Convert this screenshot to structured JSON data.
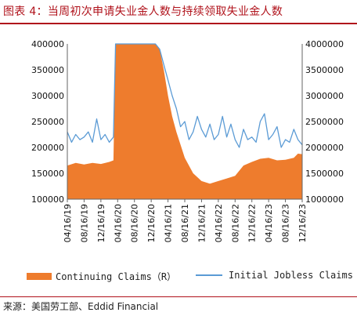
{
  "figure": {
    "title": "图表 4：当周初次申请失业金人数与持续领取失业金人数",
    "source": "来源：美国劳工部、Eddid Financial"
  },
  "chart_data": {
    "type": "line",
    "left_axis": {
      "min": 100000,
      "max": 400000,
      "ticks": [
        "400000",
        "350000",
        "300000",
        "250000",
        "200000",
        "150000",
        "100000"
      ]
    },
    "right_axis": {
      "min": 1000000,
      "max": 4000000,
      "ticks": [
        "4000000",
        "3500000",
        "3000000",
        "2500000",
        "2000000",
        "1500000",
        "1000000"
      ]
    },
    "x_ticks": [
      "04/16/19",
      "08/16/19",
      "12/16/19",
      "04/16/20",
      "08/16/20",
      "12/16/20",
      "04/16/21",
      "08/16/21",
      "12/16/21",
      "04/16/22",
      "08/16/22",
      "12/16/22",
      "04/16/23",
      "08/16/23",
      "12/16/23"
    ],
    "x_range": [
      0,
      56
    ],
    "legend_position": "bottom",
    "series": [
      {
        "name": "Continuing Claims（R）",
        "axis": "right",
        "style": "area",
        "color": "#ee7c2d",
        "x": [
          0,
          2,
          4,
          6,
          8,
          10,
          11,
          11.5,
          12,
          14,
          16,
          18,
          20,
          21,
          22,
          23,
          24,
          25,
          26,
          28,
          30,
          32,
          34,
          36,
          38,
          40,
          42,
          44,
          46,
          48,
          50,
          52,
          54,
          55,
          56
        ],
        "y": [
          1650000,
          1700000,
          1670000,
          1700000,
          1680000,
          1720000,
          1750000,
          4000000,
          4000000,
          4000000,
          4000000,
          4000000,
          4000000,
          4000000,
          3900000,
          3500000,
          3000000,
          2600000,
          2300000,
          1800000,
          1500000,
          1350000,
          1300000,
          1350000,
          1400000,
          1450000,
          1650000,
          1720000,
          1780000,
          1800000,
          1750000,
          1760000,
          1800000,
          1880000,
          1870000
        ]
      },
      {
        "name": "Initial Jobless Claims",
        "axis": "left",
        "style": "line",
        "color": "#5b9bd5",
        "x": [
          0,
          1,
          2,
          3,
          4,
          5,
          6,
          7,
          8,
          9,
          10,
          11,
          11.5,
          12,
          14,
          16,
          18,
          20,
          21,
          22,
          23,
          24,
          25,
          26,
          27,
          28,
          29,
          30,
          31,
          32,
          33,
          34,
          35,
          36,
          37,
          38,
          39,
          40,
          41,
          42,
          43,
          44,
          45,
          46,
          47,
          48,
          49,
          50,
          51,
          52,
          53,
          54,
          55,
          56
        ],
        "y": [
          230000,
          210000,
          225000,
          215000,
          220000,
          230000,
          210000,
          255000,
          215000,
          225000,
          210000,
          220000,
          400000,
          400000,
          400000,
          400000,
          400000,
          400000,
          400000,
          390000,
          360000,
          330000,
          300000,
          275000,
          240000,
          250000,
          215000,
          230000,
          260000,
          235000,
          220000,
          245000,
          215000,
          225000,
          260000,
          220000,
          245000,
          215000,
          200000,
          235000,
          215000,
          220000,
          210000,
          250000,
          265000,
          215000,
          225000,
          240000,
          200000,
          215000,
          210000,
          235000,
          215000,
          205000
        ]
      }
    ]
  }
}
